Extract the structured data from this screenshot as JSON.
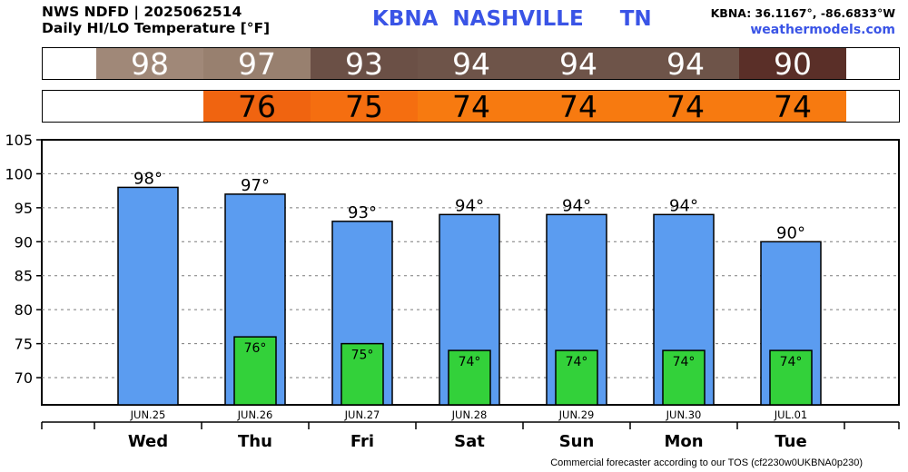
{
  "header": {
    "line1": "NWS NDFD | 2025062514",
    "line2": "Daily HI/LO Temperature [°F]",
    "station": "KBNA  NASHVILLE     TN",
    "coords": "KBNA: 36.1167°, -86.6833°W",
    "site": "weathermodels.com"
  },
  "hi_strip": [
    {
      "text": "98",
      "color": "#a08878"
    },
    {
      "text": "97",
      "color": "#98806f"
    },
    {
      "text": "93",
      "color": "#6b5046"
    },
    {
      "text": "94",
      "color": "#6e5449"
    },
    {
      "text": "94",
      "color": "#6e5449"
    },
    {
      "text": "94",
      "color": "#6e5449"
    },
    {
      "text": "90",
      "color": "#5a2f28"
    }
  ],
  "lo_strip": [
    {
      "text": "",
      "color": "#ffffff"
    },
    {
      "text": "76",
      "color": "#f06410"
    },
    {
      "text": "75",
      "color": "#f56e10"
    },
    {
      "text": "74",
      "color": "#f77a10"
    },
    {
      "text": "74",
      "color": "#f77a10"
    },
    {
      "text": "74",
      "color": "#f77a10"
    },
    {
      "text": "74",
      "color": "#f77a10"
    }
  ],
  "chart_data": {
    "type": "bar",
    "categories": [
      "JUN.25",
      "JUN.26",
      "JUN.27",
      "JUN.28",
      "JUN.29",
      "JUN.30",
      "JUL.01"
    ],
    "days": [
      "Wed",
      "Thu",
      "Fri",
      "Sat",
      "Sun",
      "Mon",
      "Tue"
    ],
    "series": [
      {
        "name": "",
        "color": "#5b9cf0",
        "values": [
          98,
          97,
          93,
          94,
          94,
          94,
          90
        ],
        "labels": [
          "98°",
          "97°",
          "93°",
          "94°",
          "94°",
          "94°",
          "90°"
        ]
      },
      {
        "name": "",
        "color": "#33d13a",
        "values": [
          null,
          76,
          75,
          74,
          74,
          74,
          74
        ],
        "labels": [
          "",
          "76°",
          "75°",
          "74°",
          "74°",
          "74°",
          "74°"
        ]
      }
    ],
    "yticks": [
      "70",
      "75",
      "80",
      "85",
      "90",
      "95",
      "100",
      "105"
    ],
    "ylim": [
      66,
      105
    ],
    "grid": true
  },
  "footer": "Commercial forecaster according to our TOS (cf2230w0UKBNA0p230)"
}
